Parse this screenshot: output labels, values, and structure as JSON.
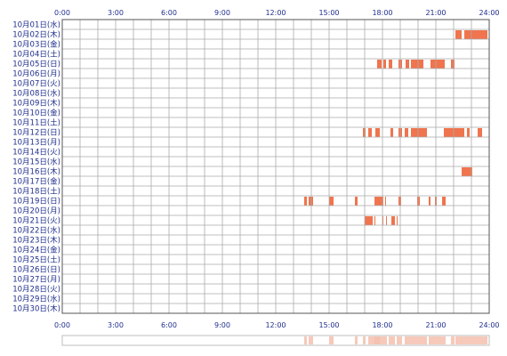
{
  "chart_data": {
    "type": "timeline-heatmap",
    "x_ticks": [
      "0:00",
      "3:00",
      "6:00",
      "9:00",
      "12:00",
      "15:00",
      "18:00",
      "21:00",
      "24:00"
    ],
    "x_range_hours": [
      0,
      24
    ],
    "grid": true,
    "bar_color": "#f0744e",
    "days": [
      {
        "label": "10月01日(水)",
        "segments": []
      },
      {
        "label": "10月02日(木)",
        "segments": [
          [
            22.1,
            22.45
          ],
          [
            22.6,
            23.9
          ]
        ]
      },
      {
        "label": "10月03日(金)",
        "segments": []
      },
      {
        "label": "10月04日(土)",
        "segments": []
      },
      {
        "label": "10月05日(日)",
        "segments": [
          [
            17.7,
            17.95
          ],
          [
            18.05,
            18.2
          ],
          [
            18.35,
            18.55
          ],
          [
            18.9,
            19.1
          ],
          [
            19.3,
            19.5
          ],
          [
            19.6,
            20.3
          ],
          [
            20.7,
            21.5
          ],
          [
            21.85,
            22.05
          ]
        ]
      },
      {
        "label": "10月06日(月)",
        "segments": []
      },
      {
        "label": "10月07日(火)",
        "segments": []
      },
      {
        "label": "10月08日(水)",
        "segments": []
      },
      {
        "label": "10月09日(木)",
        "segments": []
      },
      {
        "label": "10月10日(金)",
        "segments": []
      },
      {
        "label": "10月11日(土)",
        "segments": []
      },
      {
        "label": "10月12日(日)",
        "segments": [
          [
            16.9,
            17.05
          ],
          [
            17.2,
            17.4
          ],
          [
            17.6,
            17.85
          ],
          [
            18.45,
            18.6
          ],
          [
            18.9,
            19.1
          ],
          [
            19.25,
            19.45
          ],
          [
            19.6,
            20.5
          ],
          [
            21.45,
            22.6
          ],
          [
            22.75,
            22.9
          ],
          [
            23.35,
            23.6
          ]
        ]
      },
      {
        "label": "10月13日(月)",
        "segments": []
      },
      {
        "label": "10月14日(火)",
        "segments": []
      },
      {
        "label": "10月15日(水)",
        "segments": []
      },
      {
        "label": "10月16日(木)",
        "segments": [
          [
            22.45,
            23.05
          ]
        ]
      },
      {
        "label": "10月17日(金)",
        "segments": []
      },
      {
        "label": "10月18日(土)",
        "segments": []
      },
      {
        "label": "10月19日(日)",
        "segments": [
          [
            13.6,
            13.75
          ],
          [
            13.85,
            14.1
          ],
          [
            15.0,
            15.25
          ],
          [
            16.45,
            16.6
          ],
          [
            17.55,
            18.05
          ],
          [
            18.15,
            18.2
          ],
          [
            18.9,
            19.05
          ],
          [
            19.95,
            20.1
          ],
          [
            20.6,
            20.7
          ],
          [
            20.95,
            21.05
          ],
          [
            21.35,
            21.55
          ]
        ]
      },
      {
        "label": "10月20日(月)",
        "segments": []
      },
      {
        "label": "10月21日(火)",
        "segments": [
          [
            17.0,
            17.45
          ],
          [
            17.55,
            17.6
          ],
          [
            18.0,
            18.05
          ],
          [
            18.2,
            18.25
          ],
          [
            18.5,
            18.7
          ],
          [
            18.8,
            18.85
          ]
        ]
      },
      {
        "label": "10月22日(水)",
        "segments": []
      },
      {
        "label": "10月23日(木)",
        "segments": []
      },
      {
        "label": "10月24日(金)",
        "segments": []
      },
      {
        "label": "10月25日(土)",
        "segments": []
      },
      {
        "label": "10月26日(日)",
        "segments": []
      },
      {
        "label": "10月27日(月)",
        "segments": []
      },
      {
        "label": "10月28日(火)",
        "segments": []
      },
      {
        "label": "10月29日(水)",
        "segments": []
      },
      {
        "label": "10月30日(木)",
        "segments": []
      }
    ],
    "summary_strip": {
      "color": "#f4bfae",
      "segments": [
        [
          13.6,
          13.75
        ],
        [
          13.85,
          14.1
        ],
        [
          15.0,
          15.25
        ],
        [
          16.45,
          16.6
        ],
        [
          16.9,
          17.05
        ],
        [
          17.2,
          17.85
        ],
        [
          17.55,
          18.25
        ],
        [
          18.35,
          18.7
        ],
        [
          18.8,
          19.1
        ],
        [
          19.25,
          20.5
        ],
        [
          20.6,
          21.55
        ],
        [
          21.85,
          22.05
        ],
        [
          22.1,
          23.9
        ]
      ]
    }
  }
}
